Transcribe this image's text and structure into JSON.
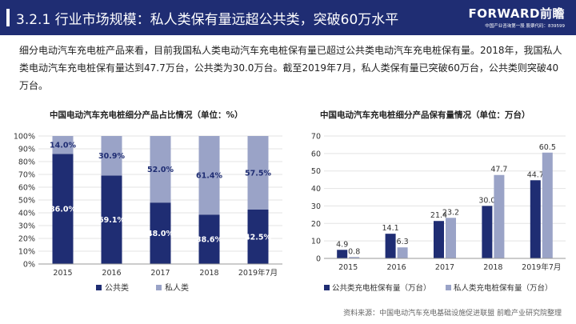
{
  "header": {
    "title": "3.2.1 行业市场规模：私人类保有量远超公共类，突破60万水平",
    "logo_brand": "FORWARD前瞻",
    "logo_sub": "中国产业咨询第一股  股票代码：839599"
  },
  "intro": {
    "paragraph": "细分电动汽车充电桩产品来看，目前我国私人类电动汽车充电桩保有量已超过公共类电动汽车充电桩保有量。2018年，我国私人类电动汽车充电桩保有量达到47.7万台，公共类为30.0万台。截至2019年7月，私人类保有量已突破60万台，公共类则突破40万台。"
  },
  "colors": {
    "public": "#1f2d73",
    "private": "#9aa3c7"
  },
  "source": "资料来源：中国电动汽车充电基础设施促进联盟 前瞻产业研究院整理",
  "chart_data": [
    {
      "type": "bar",
      "stacked": true,
      "title": "中国电动汽车充电桩细分产品占比情况（单位：%）",
      "categories": [
        "2015",
        "2016",
        "2017",
        "2018",
        "2019年7月"
      ],
      "series": [
        {
          "name": "公共类",
          "values": [
            86.0,
            69.1,
            48.0,
            38.6,
            42.5
          ]
        },
        {
          "name": "私人类",
          "values": [
            14.0,
            30.9,
            52.0,
            61.4,
            57.5
          ]
        }
      ],
      "ylim": [
        0,
        100
      ],
      "yticks": [
        "0%",
        "10%",
        "20%",
        "30%",
        "40%",
        "50%",
        "60%",
        "70%",
        "80%",
        "90%",
        "100%"
      ],
      "legend": "bottom"
    },
    {
      "type": "bar",
      "title": "中国电动汽车充电桩细分产品保有量情况（单位：万台）",
      "categories": [
        "2015",
        "2016",
        "2017",
        "2018",
        "2019年7月"
      ],
      "series": [
        {
          "name": "公共类充电桩保有量（万台）",
          "values": [
            4.9,
            14.1,
            21.4,
            30.0,
            44.7
          ]
        },
        {
          "name": "私人类充电桩保有量（万台）",
          "values": [
            0.8,
            6.3,
            23.2,
            47.7,
            60.5
          ]
        }
      ],
      "ylim": [
        0,
        70
      ],
      "yticks": [
        "0",
        "10",
        "20",
        "30",
        "40",
        "50",
        "60",
        "70"
      ],
      "legend": "bottom"
    }
  ]
}
